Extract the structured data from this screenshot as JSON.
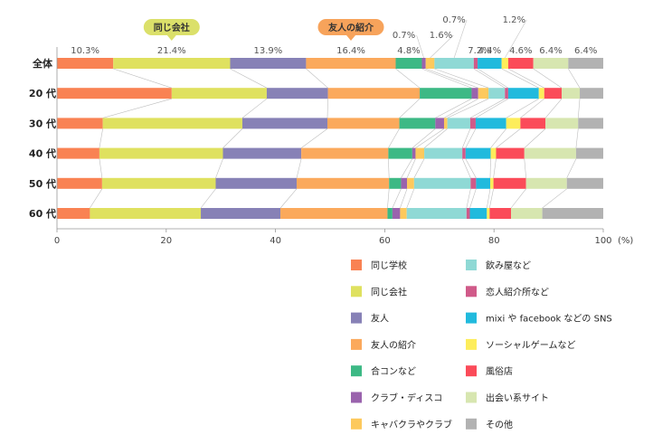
{
  "chart_data": {
    "type": "bar",
    "stacked": true,
    "orientation": "horizontal",
    "x_unit": "(%)",
    "xlim": [
      0,
      100
    ],
    "x_ticks": [
      "0",
      "20",
      "40",
      "60",
      "80",
      "100"
    ],
    "categories": [
      "全体",
      "20 代",
      "30 代",
      "40 代",
      "50 代",
      "60 代"
    ],
    "top_labels": [
      "10.3%",
      "21.4%",
      "13.9%",
      "16.4%",
      "4.8%",
      "0.7%",
      "1.6%",
      "0.7%",
      "7.2%",
      "4.4%",
      "1.2%",
      "4.6%",
      "6.4%",
      "6.4%"
    ],
    "callouts": [
      {
        "text": "同じ会社",
        "color": "#dbe06a",
        "series_index": 1
      },
      {
        "text": "友人の紹介",
        "color": "#f7a35b",
        "series_index": 3
      }
    ],
    "series": [
      {
        "name": "同じ学校",
        "color": "#f98253",
        "values": [
          10.3,
          21.0,
          8.4,
          7.8,
          8.3,
          6.0
        ]
      },
      {
        "name": "同じ会社",
        "color": "#dfe15f",
        "values": [
          21.4,
          17.4,
          25.6,
          22.7,
          20.9,
          20.2
        ]
      },
      {
        "name": "友人",
        "color": "#8781b6",
        "values": [
          13.9,
          11.2,
          15.6,
          14.4,
          14.9,
          14.5
        ]
      },
      {
        "name": "友人の紹介",
        "color": "#fba95c",
        "values": [
          16.4,
          16.8,
          13.2,
          16.0,
          17.0,
          19.5
        ]
      },
      {
        "name": "合コンなど",
        "color": "#3db985",
        "values": [
          4.8,
          9.5,
          6.6,
          4.4,
          2.2,
          0.9
        ]
      },
      {
        "name": "クラブ・ディスコ",
        "color": "#9a63ad",
        "values": [
          0.7,
          1.2,
          1.6,
          0.6,
          1.1,
          1.4
        ]
      },
      {
        "name": "キャバクラやクラブ",
        "color": "#fdc95d",
        "values": [
          1.6,
          1.9,
          0.6,
          1.6,
          1.3,
          1.2
        ]
      },
      {
        "name": "飲み屋など",
        "color": "#8fd9d5",
        "values": [
          7.2,
          3.0,
          4.2,
          7.0,
          10.4,
          10.9
        ]
      },
      {
        "name": "恋人紹介所など",
        "color": "#d05a89",
        "values": [
          0.7,
          0.6,
          1.0,
          0.6,
          1.0,
          0.6
        ]
      },
      {
        "name": "mixi や facebook などの SNS",
        "color": "#21badd",
        "values": [
          4.4,
          5.6,
          5.6,
          4.6,
          2.6,
          3.1
        ]
      },
      {
        "name": "ソーシャルゲームなど",
        "color": "#fded5b",
        "values": [
          1.2,
          1.0,
          2.6,
          1.0,
          0.6,
          0.5
        ]
      },
      {
        "name": "風俗店",
        "color": "#fb4b59",
        "values": [
          4.6,
          3.2,
          4.6,
          5.2,
          6.0,
          3.9
        ]
      },
      {
        "name": "出会い系サイト",
        "color": "#d7e6b0",
        "values": [
          6.4,
          3.3,
          6.0,
          9.5,
          7.5,
          5.7
        ]
      },
      {
        "name": "その他",
        "color": "#b2b2b2",
        "values": [
          6.4,
          4.3,
          4.6,
          5.0,
          6.7,
          11.1
        ]
      }
    ],
    "legend_position": "bottom-right",
    "grid": false
  }
}
